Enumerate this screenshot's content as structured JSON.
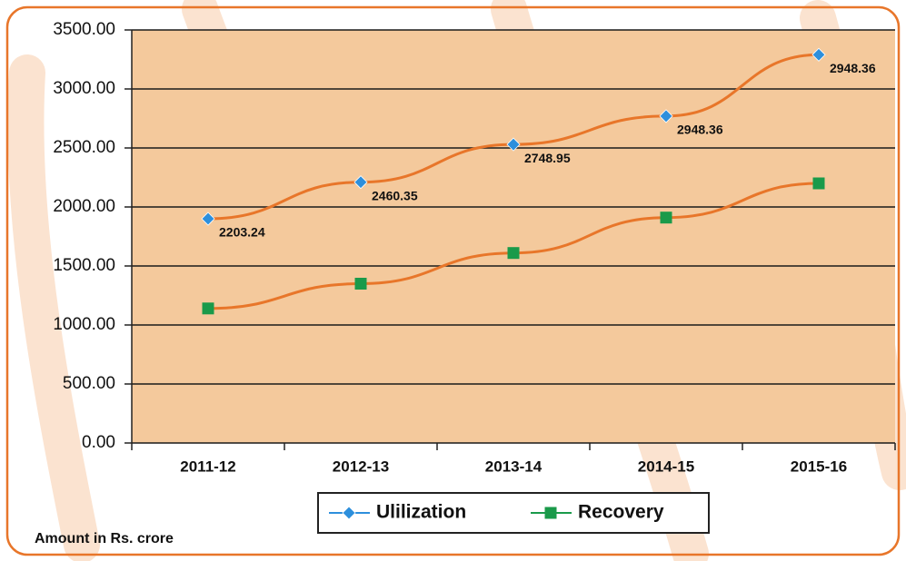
{
  "chart_data": {
    "type": "line",
    "categories": [
      "2011-12",
      "2012-13",
      "2013-14",
      "2014-15",
      "2015-16"
    ],
    "series": [
      {
        "name": "Ulilization",
        "color": "#e8762a",
        "marker": "diamond",
        "marker_color": "#2d8fdc",
        "values": [
          1900,
          2210,
          2530,
          2770,
          3290
        ]
      },
      {
        "name": "Recovery",
        "color": "#e8762a",
        "marker": "square",
        "marker_color": "#1a9a4a",
        "values": [
          1140,
          1350,
          1610,
          1910,
          2200
        ]
      }
    ],
    "annotations": [
      "2203.24",
      "2460.35",
      "2748.95",
      "2948.36",
      "2948.36"
    ],
    "ylim": [
      0,
      3500
    ],
    "yticks": [
      {
        "value": 0,
        "label": "0.00"
      },
      {
        "value": 500,
        "label": "500.00"
      },
      {
        "value": 1000,
        "label": "1000.00"
      },
      {
        "value": 1500,
        "label": "1500.00"
      },
      {
        "value": 2000,
        "label": "2000.00"
      },
      {
        "value": 2500,
        "label": "2500.00"
      },
      {
        "value": 3000,
        "label": "3000.00"
      },
      {
        "value": 3500,
        "label": "3500.00"
      }
    ],
    "grid": true,
    "plot_background": "#f4c99c",
    "footnote": "Amount in Rs. crore"
  }
}
